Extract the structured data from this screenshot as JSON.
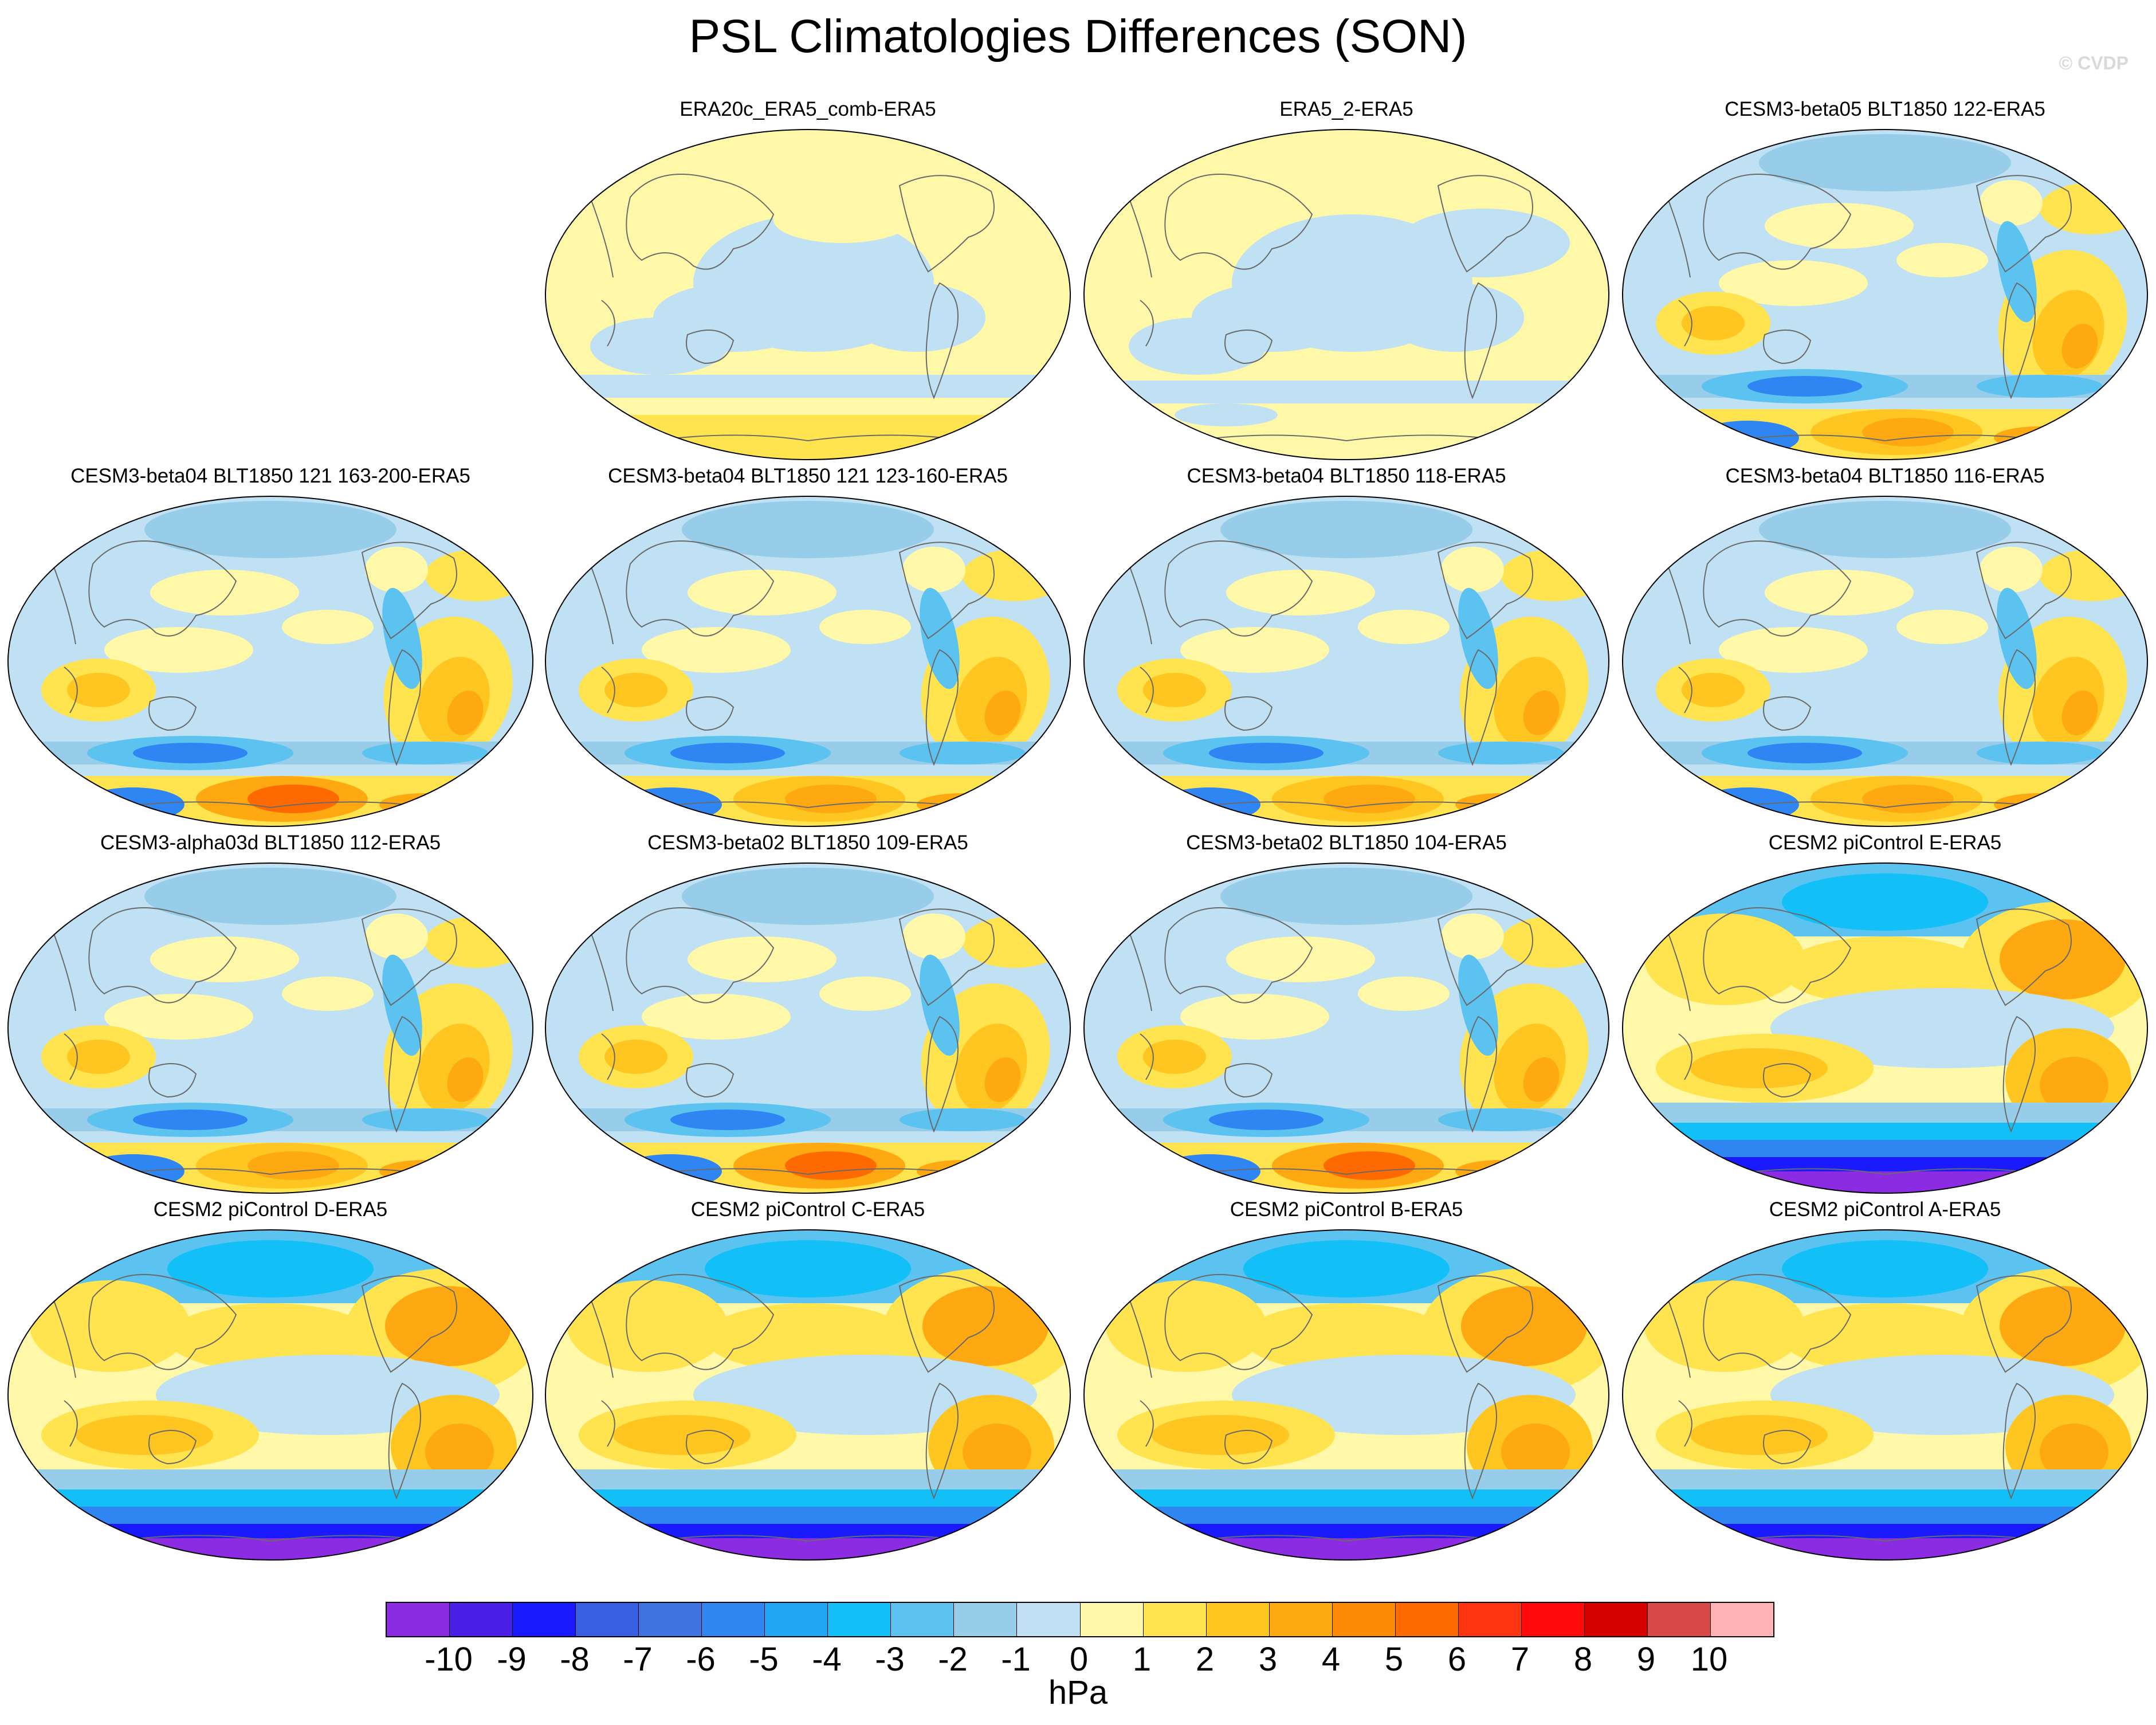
{
  "title": "PSL Climatologies Differences (SON)",
  "credit": "© CVDP",
  "colorbar": {
    "units": "hPa",
    "tick_labels": [
      "-10",
      "-9",
      "-8",
      "-7",
      "-6",
      "-5",
      "-4",
      "-3",
      "-2",
      "-1",
      "0",
      "1",
      "2",
      "3",
      "4",
      "5",
      "6",
      "7",
      "8",
      "9",
      "10"
    ],
    "colors": [
      "#8b2be2",
      "#4b1fe6",
      "#1a1aff",
      "#3a5ee0",
      "#3f73e0",
      "#2f86f2",
      "#1fa6f5",
      "#12c0f7",
      "#5cc3f0",
      "#97cde8",
      "#bfe1f3",
      "#fff8a8",
      "#ffe44f",
      "#ffc520",
      "#ffa912",
      "#ff8a05",
      "#ff6a00",
      "#ff3512",
      "#ff0a0a",
      "#d40000",
      "#d84848",
      "#ffb3b3"
    ]
  },
  "panels": [
    {
      "title": "ERA20c_ERA5_comb-ERA5",
      "style": "mild_a"
    },
    {
      "title": "ERA5_2-ERA5",
      "style": "mild_b"
    },
    {
      "title": "CESM3-beta05 BLT1850 122-ERA5",
      "style": "model"
    },
    {
      "title": "CESM3-beta04 BLT1850 121 163-200-ERA5",
      "style": "model_warm"
    },
    {
      "title": "CESM3-beta04 BLT1850 121 123-160-ERA5",
      "style": "model"
    },
    {
      "title": "CESM3-beta04 BLT1850 118-ERA5",
      "style": "model"
    },
    {
      "title": "CESM3-beta04 BLT1850 116-ERA5",
      "style": "model"
    },
    {
      "title": "CESM3-alpha03d BLT1850 112-ERA5",
      "style": "model"
    },
    {
      "title": "CESM3-beta02 BLT1850 109-ERA5",
      "style": "model_warm"
    },
    {
      "title": "CESM3-beta02 BLT1850 104-ERA5",
      "style": "model_warm"
    },
    {
      "title": "CESM2 piControl E-ERA5",
      "style": "cesm2"
    },
    {
      "title": "CESM2 piControl D-ERA5",
      "style": "cesm2"
    },
    {
      "title": "CESM2 piControl C-ERA5",
      "style": "cesm2"
    },
    {
      "title": "CESM2 piControl B-ERA5",
      "style": "cesm2"
    },
    {
      "title": "CESM2 piControl A-ERA5",
      "style": "cesm2"
    }
  ]
}
